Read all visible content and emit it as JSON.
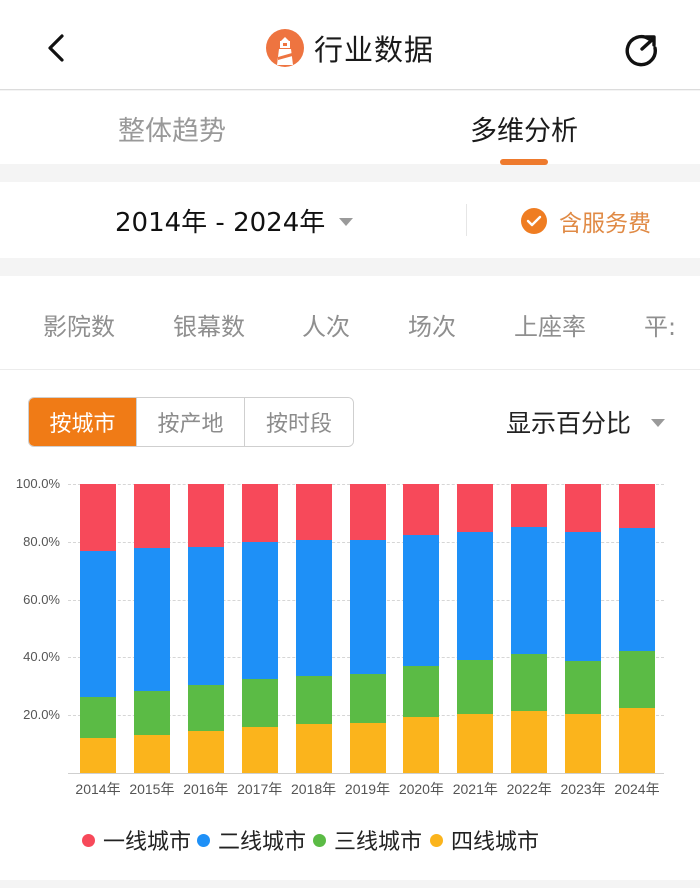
{
  "header": {
    "title": "行业数据",
    "back_icon": "chevron-left-icon",
    "logo_icon": "lighthouse-logo-icon",
    "refresh_icon": "refresh-icon"
  },
  "tabs": [
    {
      "label": "整体趋势",
      "active": false
    },
    {
      "label": "多维分析",
      "active": true
    }
  ],
  "filters": {
    "date_range": "2014年 - 2024年",
    "service_fee_label": "含服务费",
    "service_fee_checked": true
  },
  "metric_tabs": [
    "影院数",
    "银幕数",
    "人次",
    "场次",
    "上座率",
    "平:"
  ],
  "segment": {
    "options": [
      "按城市",
      "按产地",
      "按时段"
    ],
    "selected": "按城市"
  },
  "display_mode": "显示百分比",
  "colors": {
    "accent": "#f07b16",
    "tier1": "#f7495a",
    "tier2": "#1e90f7",
    "tier3": "#5bbb45",
    "tier4": "#fbb41c"
  },
  "chart_data": {
    "type": "bar",
    "stacked": true,
    "percent": true,
    "title": "",
    "xlabel": "",
    "ylabel": "",
    "ylim": [
      0,
      100
    ],
    "yticks": [
      "20.0%",
      "40.0%",
      "60.0%",
      "80.0%",
      "100.0%"
    ],
    "grid": true,
    "legend_position": "bottom",
    "categories": [
      "2014年",
      "2015年",
      "2016年",
      "2017年",
      "2018年",
      "2019年",
      "2020年",
      "2021年",
      "2022年",
      "2023年",
      "2024年"
    ],
    "series": [
      {
        "name": "四线城市",
        "color": "#fbb41c",
        "values": [
          12.0,
          13.3,
          14.7,
          15.9,
          16.8,
          17.4,
          19.3,
          20.5,
          21.3,
          20.5,
          22.6
        ]
      },
      {
        "name": "三线城市",
        "color": "#5bbb45",
        "values": [
          14.3,
          15.0,
          15.7,
          16.5,
          16.8,
          17.0,
          17.6,
          18.5,
          19.8,
          18.3,
          19.6
        ]
      },
      {
        "name": "二线城市",
        "color": "#1e90f7",
        "values": [
          50.5,
          49.4,
          47.9,
          47.4,
          47.0,
          46.4,
          45.4,
          44.4,
          44.0,
          44.7,
          42.7
        ]
      },
      {
        "name": "一线城市",
        "color": "#f7495a",
        "values": [
          23.2,
          22.3,
          21.7,
          20.2,
          19.4,
          19.2,
          17.7,
          16.6,
          14.9,
          16.5,
          15.1
        ]
      }
    ]
  },
  "legend": [
    {
      "label": "一线城市",
      "color": "#f7495a"
    },
    {
      "label": "二线城市",
      "color": "#1e90f7"
    },
    {
      "label": "三线城市",
      "color": "#5bbb45"
    },
    {
      "label": "四线城市",
      "color": "#fbb41c"
    }
  ]
}
